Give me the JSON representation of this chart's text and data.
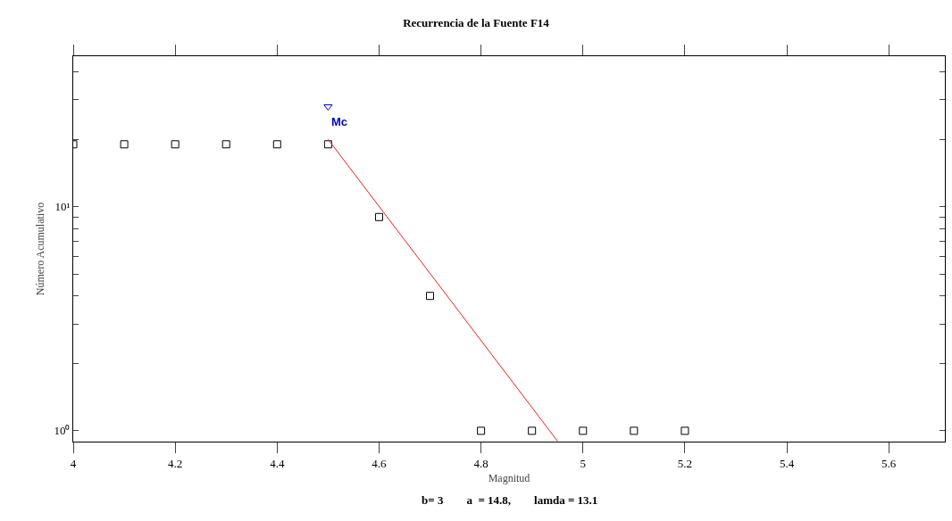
{
  "chart_data": {
    "type": "scatter",
    "title": "Recurrencia de la Fuente F14",
    "xlabel": "Magnitud",
    "ylabel": "Número Acumulativo",
    "log": "y",
    "grid": false,
    "xlim": [
      4,
      5.71
    ],
    "xticks": [
      4,
      4.2,
      4.4,
      4.6,
      4.8,
      5,
      5.2,
      5.4,
      5.6
    ],
    "ylim": [
      0.895,
      47
    ],
    "yticks": [
      {
        "value": 1,
        "label": "10⁰"
      },
      {
        "value": 2,
        "label": null
      },
      {
        "value": 3,
        "label": null
      },
      {
        "value": 4,
        "label": null
      },
      {
        "value": 5,
        "label": null
      },
      {
        "value": 6,
        "label": null
      },
      {
        "value": 7,
        "label": null
      },
      {
        "value": 8,
        "label": null
      },
      {
        "value": 9,
        "label": null
      },
      {
        "value": 10,
        "label": "10¹"
      },
      {
        "value": 20,
        "label": null
      },
      {
        "value": 30,
        "label": null
      },
      {
        "value": 40,
        "label": null
      }
    ],
    "series": [
      {
        "marker": "square",
        "color": "#000000",
        "x": [
          4,
          4.1,
          4.2,
          4.3,
          4.4,
          4.5,
          4.6,
          4.7,
          4.8,
          4.9,
          5,
          5.1,
          5.2
        ],
        "values": [
          19,
          19,
          19,
          19,
          19,
          19,
          9,
          4,
          1,
          1,
          1,
          1,
          1
        ]
      },
      {
        "type": "line",
        "marker": "none",
        "color": "#e02020",
        "x": [
          4.5,
          4.95
        ],
        "values": [
          20,
          0.9
        ]
      },
      {
        "marker": "triangle",
        "color": "#0000cc",
        "x": [
          4.5
        ],
        "values": [
          28
        ]
      }
    ],
    "annotations": [
      {
        "text": "Mc",
        "x": 4.5,
        "y": 28
      },
      "b= 3        a  = 14.8,        lamda = 13.1"
    ]
  }
}
